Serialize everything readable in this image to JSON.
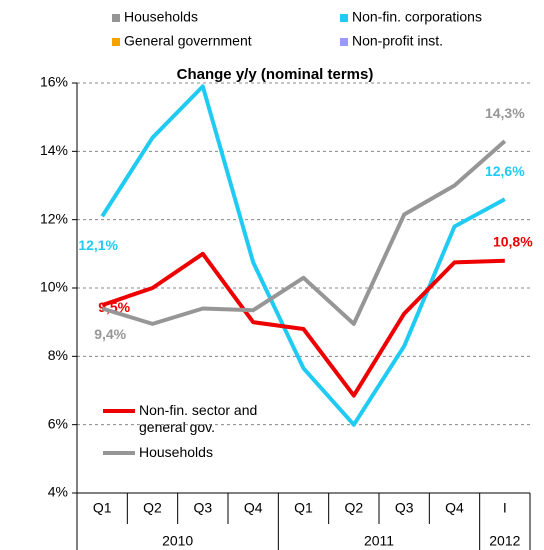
{
  "chart_data": {
    "type": "line",
    "title": "Change y/y (nominal terms)",
    "top_legend": [
      {
        "name": "Households",
        "color": "#969696"
      },
      {
        "name": "Non-fin. corporations",
        "color": "#1fcbf2"
      },
      {
        "name": "General government",
        "color": "#f5a300"
      },
      {
        "name": "Non-profit inst.",
        "color": "#9999ff"
      }
    ],
    "groups": [
      {
        "label": "2010",
        "categories": [
          "Q1",
          "Q2",
          "Q3",
          "Q4"
        ]
      },
      {
        "label": "2011",
        "categories": [
          "Q1",
          "Q2",
          "Q3",
          "Q4"
        ]
      },
      {
        "label": "2012",
        "categories": [
          "I"
        ]
      }
    ],
    "series": [
      {
        "name": "Non-fin. corporations",
        "color": "#1fcbf2",
        "values": [
          12.1,
          14.4,
          15.9,
          10.75,
          7.65,
          6.0,
          8.3,
          11.8,
          12.6
        ],
        "value_labels": [
          "12,1%",
          null,
          null,
          null,
          null,
          null,
          null,
          null,
          "12,6%"
        ]
      },
      {
        "name": "Non-fin. sector and general gov.",
        "color": "#ee0000",
        "values": [
          9.5,
          10.0,
          11.0,
          9.0,
          8.8,
          6.85,
          9.25,
          10.75,
          10.8
        ],
        "value_labels": [
          "9,5%",
          null,
          null,
          null,
          null,
          null,
          null,
          null,
          "10,8%"
        ]
      },
      {
        "name": "Households",
        "color": "#969696",
        "values": [
          9.4,
          8.95,
          9.4,
          9.35,
          10.3,
          8.95,
          12.15,
          13.0,
          14.3
        ],
        "value_labels": [
          "9,4%",
          null,
          null,
          null,
          null,
          null,
          null,
          null,
          "14,3%"
        ]
      }
    ],
    "ylim": [
      4,
      16
    ],
    "yticks": [
      {
        "value": 4,
        "label": "4%"
      },
      {
        "value": 6,
        "label": "6%"
      },
      {
        "value": 8,
        "label": "8%"
      },
      {
        "value": 10,
        "label": "10%"
      },
      {
        "value": 12,
        "label": "12%"
      },
      {
        "value": 14,
        "label": "14%"
      },
      {
        "value": 16,
        "label": "16%"
      }
    ],
    "grid": true,
    "legend_series": [
      1,
      2
    ]
  }
}
